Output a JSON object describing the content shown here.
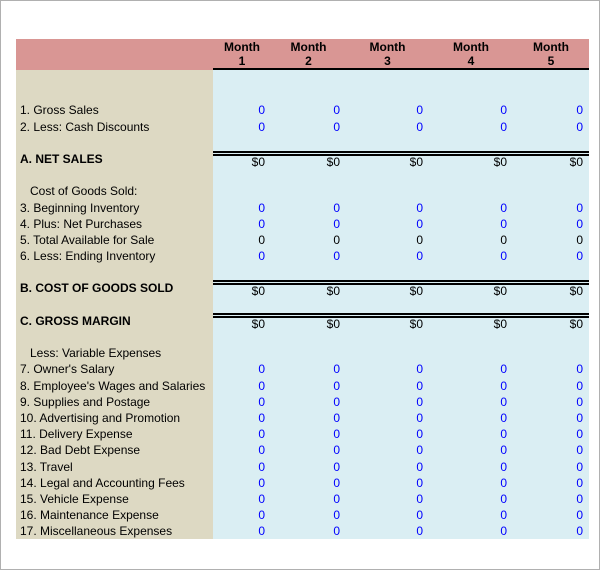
{
  "frame": {
    "background": "#ffffff",
    "border_color": "#b0b0b0"
  },
  "colors": {
    "header_bg": "#d99694",
    "label_col_bg": "#ddd9c3",
    "data_bg": "#daeef3",
    "input_value": "#0000ff",
    "text": "#000000"
  },
  "header": {
    "columns": [
      {
        "line1": "Month",
        "line2": "1"
      },
      {
        "line1": "Month",
        "line2": "2"
      },
      {
        "line1": "Month",
        "line2": "3"
      },
      {
        "line1": "Month",
        "line2": "4"
      },
      {
        "line1": "Month",
        "line2": "5"
      }
    ]
  },
  "rows": [
    {
      "type": "empty",
      "label": ""
    },
    {
      "type": "empty",
      "label": ""
    },
    {
      "type": "input",
      "label": "1. Gross Sales",
      "values": [
        "0",
        "0",
        "0",
        "0",
        "0"
      ]
    },
    {
      "type": "input",
      "label": "2. Less: Cash Discounts",
      "values": [
        "0",
        "0",
        "0",
        "0",
        "0"
      ]
    },
    {
      "type": "empty",
      "label": ""
    },
    {
      "type": "total",
      "label": "A. NET SALES",
      "values": [
        "$0",
        "$0",
        "$0",
        "$0",
        "$0"
      ]
    },
    {
      "type": "empty",
      "label": ""
    },
    {
      "type": "sublabel",
      "label": "Cost of Goods Sold:"
    },
    {
      "type": "input",
      "label": "3. Beginning Inventory",
      "values": [
        "0",
        "0",
        "0",
        "0",
        "0"
      ]
    },
    {
      "type": "input",
      "label": "4. Plus: Net Purchases",
      "values": [
        "0",
        "0",
        "0",
        "0",
        "0"
      ]
    },
    {
      "type": "calc",
      "label": "5. Total Available for Sale",
      "values": [
        "0",
        "0",
        "0",
        "0",
        "0"
      ]
    },
    {
      "type": "input",
      "label": "6. Less: Ending Inventory",
      "values": [
        "0",
        "0",
        "0",
        "0",
        "0"
      ]
    },
    {
      "type": "empty",
      "label": ""
    },
    {
      "type": "total",
      "label": "B. COST OF GOODS SOLD",
      "values": [
        "$0",
        "$0",
        "$0",
        "$0",
        "$0"
      ]
    },
    {
      "type": "empty",
      "label": ""
    },
    {
      "type": "total",
      "label": "C. GROSS MARGIN",
      "values": [
        "$0",
        "$0",
        "$0",
        "$0",
        "$0"
      ]
    },
    {
      "type": "empty",
      "label": ""
    },
    {
      "type": "sublabel",
      "label": "Less: Variable Expenses"
    },
    {
      "type": "input",
      "label": "7. Owner's Salary",
      "values": [
        "0",
        "0",
        "0",
        "0",
        "0"
      ]
    },
    {
      "type": "input",
      "label": "8. Employee's Wages and Salaries",
      "values": [
        "0",
        "0",
        "0",
        "0",
        "0"
      ]
    },
    {
      "type": "input",
      "label": "9. Supplies and Postage",
      "values": [
        "0",
        "0",
        "0",
        "0",
        "0"
      ]
    },
    {
      "type": "input",
      "label": "10. Advertising and Promotion",
      "values": [
        "0",
        "0",
        "0",
        "0",
        "0"
      ]
    },
    {
      "type": "input",
      "label": "11. Delivery Expense",
      "values": [
        "0",
        "0",
        "0",
        "0",
        "0"
      ]
    },
    {
      "type": "input",
      "label": "12. Bad Debt Expense",
      "values": [
        "0",
        "0",
        "0",
        "0",
        "0"
      ]
    },
    {
      "type": "input",
      "label": "13. Travel",
      "values": [
        "0",
        "0",
        "0",
        "0",
        "0"
      ]
    },
    {
      "type": "input",
      "label": "14. Legal and Accounting Fees",
      "values": [
        "0",
        "0",
        "0",
        "0",
        "0"
      ]
    },
    {
      "type": "input",
      "label": "15. Vehicle Expense",
      "values": [
        "0",
        "0",
        "0",
        "0",
        "0"
      ]
    },
    {
      "type": "input",
      "label": "16. Maintenance Expense",
      "values": [
        "0",
        "0",
        "0",
        "0",
        "0"
      ]
    },
    {
      "type": "input",
      "label": "17. Miscellaneous Expenses",
      "values": [
        "0",
        "0",
        "0",
        "0",
        "0"
      ]
    }
  ]
}
